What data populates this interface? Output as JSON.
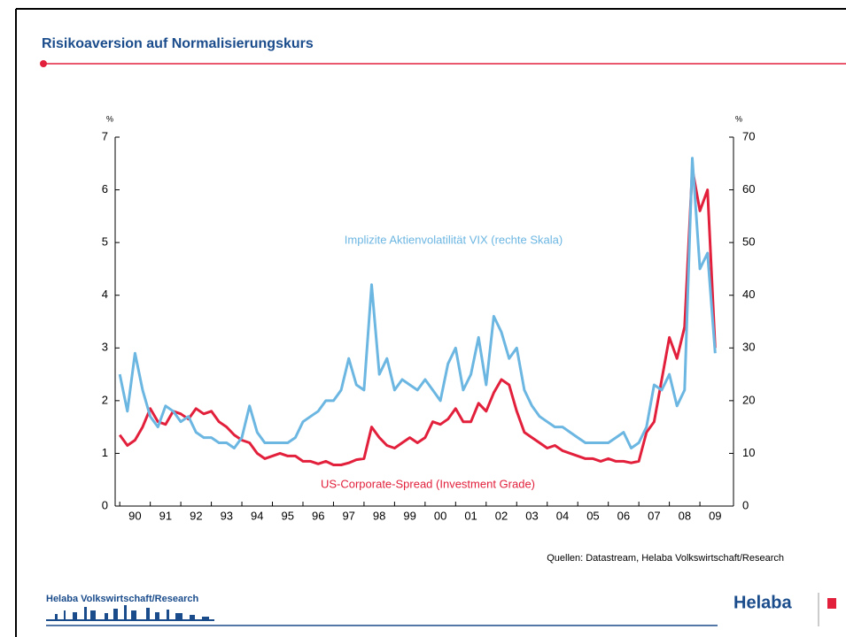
{
  "header": {
    "title": "Risikoaversion auf Normalisierungskurs"
  },
  "footer": {
    "source": "Quellen: Datastream, Helaba Volkswirtschaft/Research",
    "brand": "Helaba Volkswirtschaft/Research",
    "logo": "Helaba"
  },
  "chart_data": {
    "type": "line",
    "yunit": "%",
    "y2unit": "%",
    "annotations": [
      {
        "text": "Implizite Aktienvolatilität VIX (rechte Skala)",
        "series": 1
      },
      {
        "text": "US-Corporate-Spread (Investment Grade)",
        "series": 0
      }
    ],
    "xlim": [
      1989.85,
      2010.1
    ],
    "xticks": [
      {
        "value": 1990,
        "label": "90"
      },
      {
        "value": 1991,
        "label": "91"
      },
      {
        "value": 1992,
        "label": "92"
      },
      {
        "value": 1993,
        "label": "93"
      },
      {
        "value": 1994,
        "label": "94"
      },
      {
        "value": 1995,
        "label": "95"
      },
      {
        "value": 1996,
        "label": "96"
      },
      {
        "value": 1997,
        "label": "97"
      },
      {
        "value": 1998,
        "label": "98"
      },
      {
        "value": 1999,
        "label": "99"
      },
      {
        "value": 2000,
        "label": "00"
      },
      {
        "value": 2001,
        "label": "01"
      },
      {
        "value": 2002,
        "label": "02"
      },
      {
        "value": 2003,
        "label": "03"
      },
      {
        "value": 2004,
        "label": "04"
      },
      {
        "value": 2005,
        "label": "05"
      },
      {
        "value": 2006,
        "label": "06"
      },
      {
        "value": 2007,
        "label": "07"
      },
      {
        "value": 2008,
        "label": "08"
      },
      {
        "value": 2009,
        "label": "09"
      }
    ],
    "ylim": [
      0,
      7
    ],
    "yticks": [
      0,
      1,
      2,
      3,
      4,
      5,
      6,
      7
    ],
    "y2lim": [
      0,
      70
    ],
    "y2ticks": [
      0,
      10,
      20,
      30,
      40,
      50,
      60,
      70
    ],
    "x": [
      1990,
      1990.25,
      1990.5,
      1990.75,
      1991,
      1991.25,
      1991.5,
      1991.75,
      1992,
      1992.25,
      1992.5,
      1992.75,
      1993,
      1993.25,
      1993.5,
      1993.75,
      1994,
      1994.25,
      1994.5,
      1994.75,
      1995,
      1995.25,
      1995.5,
      1995.75,
      1996,
      1996.25,
      1996.5,
      1996.75,
      1997,
      1997.25,
      1997.5,
      1997.75,
      1998,
      1998.25,
      1998.5,
      1998.75,
      1999,
      1999.25,
      1999.5,
      1999.75,
      2000,
      2000.25,
      2000.5,
      2000.75,
      2001,
      2001.25,
      2001.5,
      2001.75,
      2002,
      2002.25,
      2002.5,
      2002.75,
      2003,
      2003.25,
      2003.5,
      2003.75,
      2004,
      2004.25,
      2004.5,
      2004.75,
      2005,
      2005.25,
      2005.5,
      2005.75,
      2006,
      2006.25,
      2006.5,
      2006.75,
      2007,
      2007.25,
      2007.5,
      2007.75,
      2008,
      2008.25,
      2008.5,
      2008.75,
      2009,
      2009.25,
      2009.5
    ],
    "series": [
      {
        "name": "US-Corporate-Spread (Investment Grade)",
        "color": "#e2203c",
        "axis": "y",
        "values": [
          1.35,
          1.15,
          1.25,
          1.5,
          1.85,
          1.6,
          1.55,
          1.8,
          1.75,
          1.65,
          1.85,
          1.75,
          1.8,
          1.6,
          1.5,
          1.35,
          1.25,
          1.2,
          1.0,
          0.9,
          0.95,
          1.0,
          0.95,
          0.95,
          0.85,
          0.85,
          0.8,
          0.85,
          0.78,
          0.78,
          0.82,
          0.88,
          0.9,
          1.5,
          1.3,
          1.15,
          1.1,
          1.2,
          1.3,
          1.2,
          1.3,
          1.6,
          1.55,
          1.65,
          1.85,
          1.6,
          1.6,
          1.95,
          1.8,
          2.15,
          2.4,
          2.3,
          1.8,
          1.4,
          1.3,
          1.2,
          1.1,
          1.15,
          1.05,
          1.0,
          0.95,
          0.9,
          0.9,
          0.85,
          0.9,
          0.85,
          0.85,
          0.82,
          0.85,
          1.4,
          1.6,
          2.4,
          3.2,
          2.8,
          3.4,
          6.4,
          5.6,
          6.0,
          3.0
        ]
      },
      {
        "name": "Implizite Aktienvolatilität VIX",
        "color": "#6cb6e2",
        "axis": "y2",
        "values": [
          25,
          18,
          29,
          22,
          17,
          15,
          19,
          18,
          16,
          17,
          14,
          13,
          13,
          12,
          12,
          11,
          13,
          19,
          14,
          12,
          12,
          12,
          12,
          13,
          16,
          17,
          18,
          20,
          20,
          22,
          28,
          23,
          22,
          42,
          25,
          28,
          22,
          24,
          23,
          22,
          24,
          22,
          20,
          27,
          30,
          22,
          25,
          32,
          23,
          36,
          33,
          28,
          30,
          22,
          19,
          17,
          16,
          15,
          15,
          14,
          13,
          12,
          12,
          12,
          12,
          13,
          14,
          11,
          12,
          15,
          23,
          22,
          25,
          19,
          22,
          66,
          45,
          48,
          29
        ]
      }
    ]
  }
}
